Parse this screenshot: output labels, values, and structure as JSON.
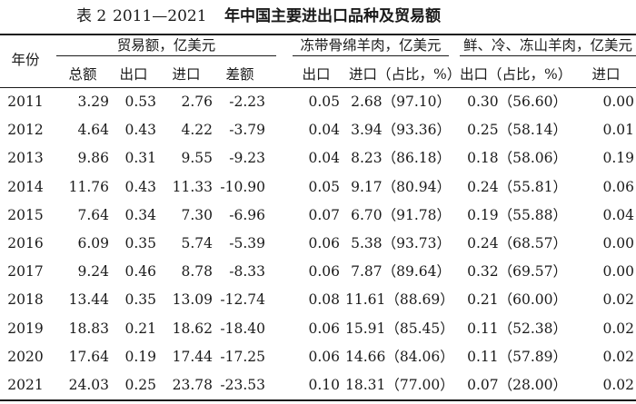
{
  "table": {
    "title_no": "表 2",
    "title_years": "2011—2021",
    "title_text": "年中国主要进出口品种及贸易额",
    "header_year": "年份",
    "group1": "贸易额，亿美元",
    "group2": "冻带骨绵羊肉，亿美元",
    "group3": "鲜、冷、冻山羊肉，亿美元",
    "sub_headers": [
      "总额",
      "出口",
      "进口",
      "差额",
      "出口",
      "进口（占比，%）",
      "出口（占比，%）",
      "进口"
    ],
    "rows": [
      {
        "year": "2011",
        "total": "3.29",
        "export": "0.53",
        "import": "2.76",
        "diff": "-2.23",
        "s_export": "0.05",
        "s_import": "2.68（97.10）",
        "g_export": "0.30（56.60）",
        "g_import": "0.00"
      },
      {
        "year": "2012",
        "total": "4.64",
        "export": "0.43",
        "import": "4.22",
        "diff": "-3.79",
        "s_export": "0.04",
        "s_import": "3.94（93.36）",
        "g_export": "0.25（58.14）",
        "g_import": "0.01"
      },
      {
        "year": "2013",
        "total": "9.86",
        "export": "0.31",
        "import": "9.55",
        "diff": "-9.23",
        "s_export": "0.04",
        "s_import": "8.23（86.18）",
        "g_export": "0.18（58.06）",
        "g_import": "0.19"
      },
      {
        "year": "2014",
        "total": "11.76",
        "export": "0.43",
        "import": "11.33",
        "diff": "-10.90",
        "s_export": "0.05",
        "s_import": "9.17（80.94）",
        "g_export": "0.24（55.81）",
        "g_import": "0.06"
      },
      {
        "year": "2015",
        "total": "7.64",
        "export": "0.34",
        "import": "7.30",
        "diff": "-6.96",
        "s_export": "0.07",
        "s_import": "6.70（91.78）",
        "g_export": "0.19（55.88）",
        "g_import": "0.04"
      },
      {
        "year": "2016",
        "total": "6.09",
        "export": "0.35",
        "import": "5.74",
        "diff": "-5.39",
        "s_export": "0.06",
        "s_import": "5.38（93.73）",
        "g_export": "0.24（68.57）",
        "g_import": "0.00"
      },
      {
        "year": "2017",
        "total": "9.24",
        "export": "0.46",
        "import": "8.78",
        "diff": "-8.33",
        "s_export": "0.06",
        "s_import": "7.87（89.64）",
        "g_export": "0.32（69.57）",
        "g_import": "0.00"
      },
      {
        "year": "2018",
        "total": "13.44",
        "export": "0.35",
        "import": "13.09",
        "diff": "-12.74",
        "s_export": "0.08",
        "s_import": "11.61（88.69）",
        "g_export": "0.21（60.00）",
        "g_import": "0.02"
      },
      {
        "year": "2019",
        "total": "18.83",
        "export": "0.21",
        "import": "18.62",
        "diff": "-18.40",
        "s_export": "0.06",
        "s_import": "15.91（85.45）",
        "g_export": "0.11（52.38）",
        "g_import": "0.02"
      },
      {
        "year": "2020",
        "total": "17.64",
        "export": "0.19",
        "import": "17.44",
        "diff": "-17.25",
        "s_export": "0.06",
        "s_import": "14.66（84.06）",
        "g_export": "0.11（57.89）",
        "g_import": "0.02"
      },
      {
        "year": "2021",
        "total": "24.03",
        "export": "0.25",
        "import": "23.78",
        "diff": "-23.53",
        "s_export": "0.10",
        "s_import": "18.31（77.00）",
        "g_export": "0.07（28.00）",
        "g_import": "0.02"
      }
    ]
  }
}
